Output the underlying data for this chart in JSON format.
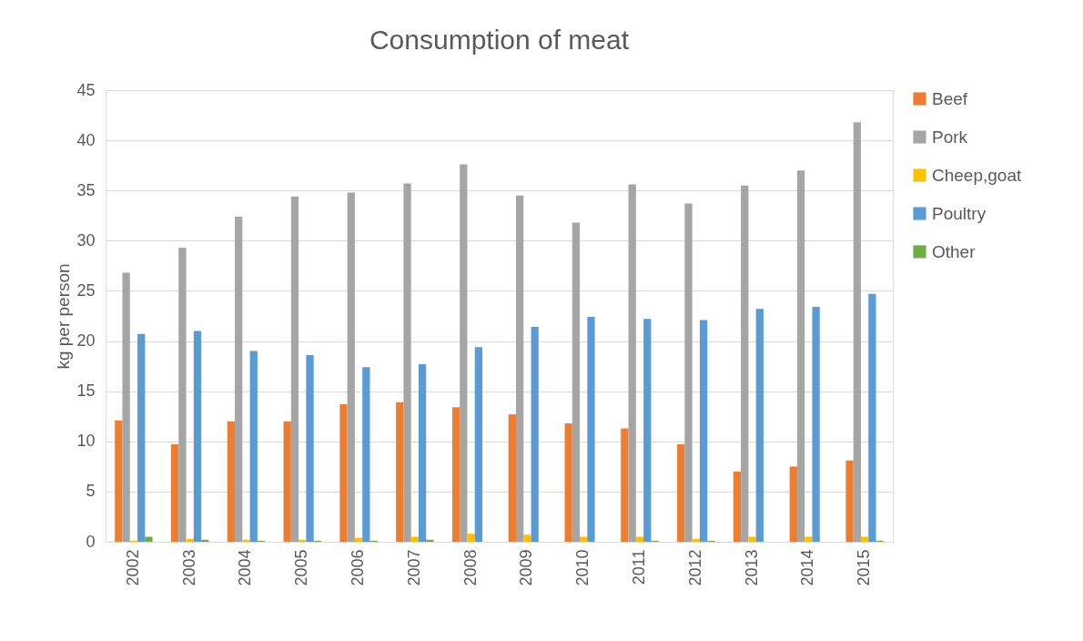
{
  "chart_data": {
    "type": "bar",
    "title": "Consumption of meat",
    "ylabel": "kg per person",
    "categories": [
      "2002",
      "2003",
      "2004",
      "2005",
      "2006",
      "2007",
      "2008",
      "2009",
      "2010",
      "2011",
      "2012",
      "2013",
      "2014",
      "2015"
    ],
    "series": [
      {
        "name": "Beef",
        "color": "#ed7d31",
        "values": [
          12.1,
          9.7,
          12.0,
          12.0,
          13.7,
          13.9,
          13.4,
          12.7,
          11.8,
          11.3,
          9.7,
          7.0,
          7.5,
          8.1
        ]
      },
      {
        "name": "Pork",
        "color": "#a5a5a5",
        "values": [
          26.8,
          29.3,
          32.4,
          34.4,
          34.8,
          35.7,
          37.6,
          34.5,
          31.8,
          35.6,
          33.7,
          35.5,
          37.0,
          41.8
        ]
      },
      {
        "name": "Cheep,goat",
        "color": "#ffc000",
        "values": [
          0.1,
          0.3,
          0.2,
          0.2,
          0.4,
          0.5,
          0.8,
          0.7,
          0.5,
          0.5,
          0.3,
          0.5,
          0.5,
          0.5
        ]
      },
      {
        "name": "Poultry",
        "color": "#5b9bd5",
        "values": [
          20.7,
          21.0,
          19.0,
          18.6,
          17.4,
          17.7,
          19.4,
          21.4,
          22.4,
          22.2,
          22.1,
          23.2,
          23.4,
          24.7
        ]
      },
      {
        "name": "Other",
        "color": "#70ad47",
        "values": [
          0.5,
          0.2,
          0.1,
          0.1,
          0.1,
          0.2,
          0.0,
          0.0,
          0.0,
          0.1,
          0.1,
          0.0,
          0.0,
          0.1
        ]
      }
    ],
    "ylim": [
      0,
      45
    ],
    "yticks": [
      0,
      5,
      10,
      15,
      20,
      25,
      30,
      35,
      40,
      45
    ],
    "grid": "y",
    "legend": "right"
  }
}
